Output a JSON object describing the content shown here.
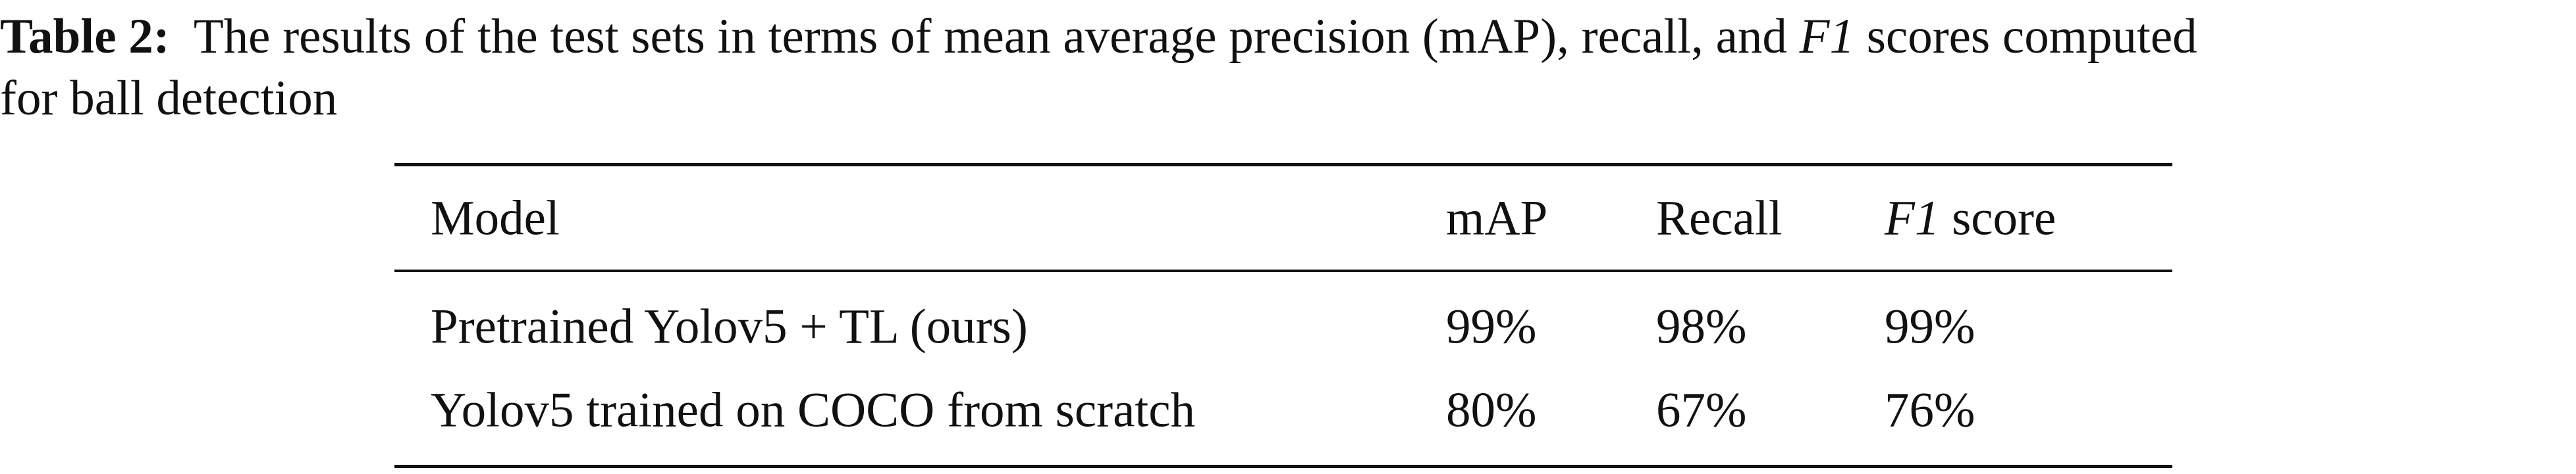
{
  "caption": {
    "label": "Table 2:",
    "text_before": "The results of the test sets in terms of mean average precision (mAP), recall, and",
    "text_italic": "F1",
    "text_after_line1": "scores computed",
    "text_line2": "for ball detection"
  },
  "table": {
    "header": {
      "model": "Model",
      "map": "mAP",
      "recall": "Recall",
      "f1_italic": "F1",
      "f1_rest": "score"
    },
    "rows": [
      [
        "Pretrained Yolov5 + TL (ours)",
        "99%",
        "98%",
        "99%"
      ],
      [
        "Yolov5 trained on COCO from scratch",
        "80%",
        "67%",
        "76%"
      ]
    ]
  }
}
